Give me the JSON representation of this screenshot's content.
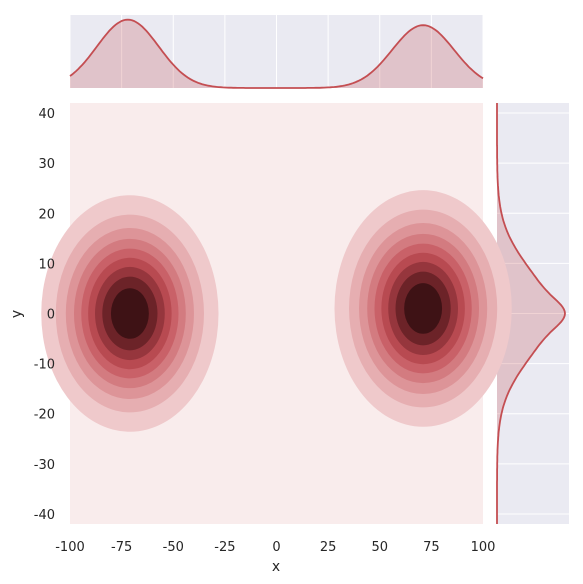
{
  "chart_data": {
    "type": "contour",
    "title": "",
    "xlabel": "x",
    "ylabel": "y",
    "xlim": [
      -100,
      100
    ],
    "ylim": [
      -42,
      42
    ],
    "xticks": [
      "-100",
      "-75",
      "-50",
      "-25",
      "0",
      "25",
      "50",
      "75",
      "100"
    ],
    "yticks": [
      "40",
      "30",
      "20",
      "10",
      "0",
      "-10",
      "-20",
      "-30",
      "-40"
    ],
    "clusters": [
      {
        "x": -71,
        "y": 0,
        "sx": 20,
        "sy": 11
      },
      {
        "x": 71,
        "y": 1,
        "sx": 20,
        "sy": 11
      }
    ],
    "levels": [
      0.1,
      0.2,
      0.3,
      0.4,
      0.5,
      0.6,
      0.7,
      0.8,
      0.9
    ],
    "marginal_x": {
      "peaks": [
        -72,
        71
      ],
      "ymax_fraction": 1.0
    },
    "marginal_y": {
      "peak": 0
    },
    "grid": true,
    "colors": {
      "background_panel": "#eaeaf2",
      "contour_base": "#f9ecec",
      "line": "#c44e52",
      "fill": "#c44e52",
      "dark": "#1a0b0b"
    }
  }
}
